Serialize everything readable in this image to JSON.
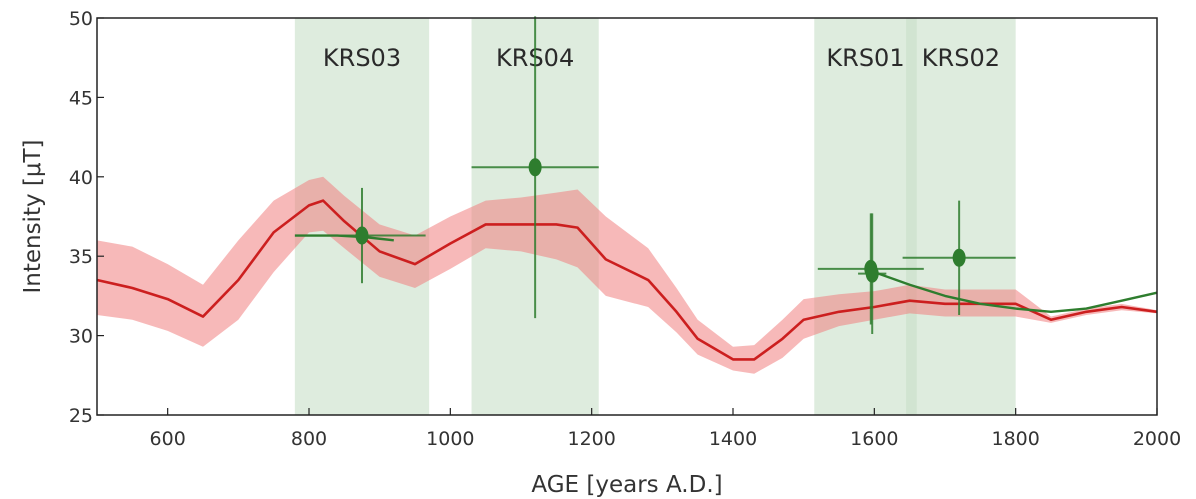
{
  "chart_data": {
    "type": "line",
    "title": "",
    "xlabel": "AGE [years A.D.]",
    "ylabel": "Intensity [μT]",
    "xlim": [
      500,
      2000
    ],
    "ylim": [
      25,
      50
    ],
    "xticks": [
      600,
      800,
      1000,
      1200,
      1400,
      1600,
      1800,
      2000
    ],
    "yticks": [
      25,
      30,
      35,
      40,
      45,
      50
    ],
    "grid": false,
    "colors": {
      "red_curve": "#cc1f1f",
      "red_band": "#f08080",
      "green_curve": "#2e7d2e",
      "green_point": "#2e7d2e",
      "period_shade": "#c8dfc8"
    },
    "periods": [
      {
        "label": "KRS03",
        "start": 780,
        "end": 970
      },
      {
        "label": "KRS04",
        "start": 1030,
        "end": 1210
      },
      {
        "label": "KRS01",
        "start": 1515,
        "end": 1660
      },
      {
        "label": "KRS02",
        "start": 1645,
        "end": 1800
      }
    ],
    "red_model": {
      "x": [
        500,
        550,
        600,
        650,
        700,
        750,
        800,
        820,
        850,
        900,
        950,
        1000,
        1050,
        1100,
        1150,
        1180,
        1220,
        1280,
        1320,
        1350,
        1400,
        1430,
        1470,
        1500,
        1550,
        1600,
        1650,
        1700,
        1750,
        1800,
        1850,
        1900,
        1950,
        2000
      ],
      "y": [
        33.5,
        33.0,
        32.3,
        31.2,
        33.5,
        36.5,
        38.2,
        38.5,
        37.2,
        35.3,
        34.5,
        35.8,
        37.0,
        37.0,
        37.0,
        36.8,
        34.8,
        33.5,
        31.5,
        29.8,
        28.5,
        28.5,
        29.8,
        31.0,
        31.5,
        31.8,
        32.2,
        32.0,
        32.0,
        32.0,
        31.0,
        31.5,
        31.8,
        31.5
      ],
      "lower": [
        31.3,
        31.0,
        30.3,
        29.3,
        31.0,
        34.0,
        36.5,
        36.6,
        35.5,
        33.7,
        33.0,
        34.2,
        35.5,
        35.3,
        34.8,
        34.3,
        32.5,
        31.8,
        30.2,
        28.8,
        27.8,
        27.6,
        28.6,
        29.8,
        30.6,
        31.0,
        31.4,
        31.2,
        31.2,
        31.2,
        30.8,
        31.3,
        31.6,
        31.4
      ],
      "upper": [
        36.0,
        35.6,
        34.5,
        33.2,
        36.0,
        38.5,
        39.8,
        40.0,
        38.8,
        37.0,
        36.3,
        37.5,
        38.5,
        38.7,
        39.0,
        39.2,
        37.5,
        35.5,
        33.0,
        31.0,
        29.3,
        29.4,
        31.0,
        32.3,
        32.6,
        32.8,
        33.2,
        32.9,
        32.9,
        32.9,
        31.2,
        31.7,
        32.0,
        31.6
      ]
    },
    "green_model": [
      {
        "x": [
          780,
          840,
          880,
          920
        ],
        "y": [
          36.3,
          36.3,
          36.2,
          36.0
        ]
      },
      {
        "x": [
          1600,
          1650,
          1700,
          1750,
          1800,
          1850,
          1900,
          1950,
          2000
        ],
        "y": [
          34.0,
          33.2,
          32.5,
          32.0,
          31.7,
          31.5,
          31.7,
          32.2,
          32.7
        ]
      }
    ],
    "points": [
      {
        "x": 875,
        "y": 36.3,
        "xerr": [
          90,
          90
        ],
        "yerr": [
          3.0,
          3.0
        ]
      },
      {
        "x": 1120,
        "y": 40.6,
        "xerr": [
          90,
          90
        ],
        "yerr": [
          9.5,
          9.5
        ]
      },
      {
        "x": 1595,
        "y": 34.2,
        "xerr": [
          75,
          75
        ],
        "yerr": [
          3.5,
          3.5
        ]
      },
      {
        "x": 1597,
        "y": 33.9,
        "xerr": [
          20,
          20
        ],
        "yerr": [
          3.8,
          3.8
        ]
      },
      {
        "x": 1720,
        "y": 34.9,
        "xerr": [
          80,
          80
        ],
        "yerr": [
          3.6,
          3.6
        ]
      }
    ]
  }
}
